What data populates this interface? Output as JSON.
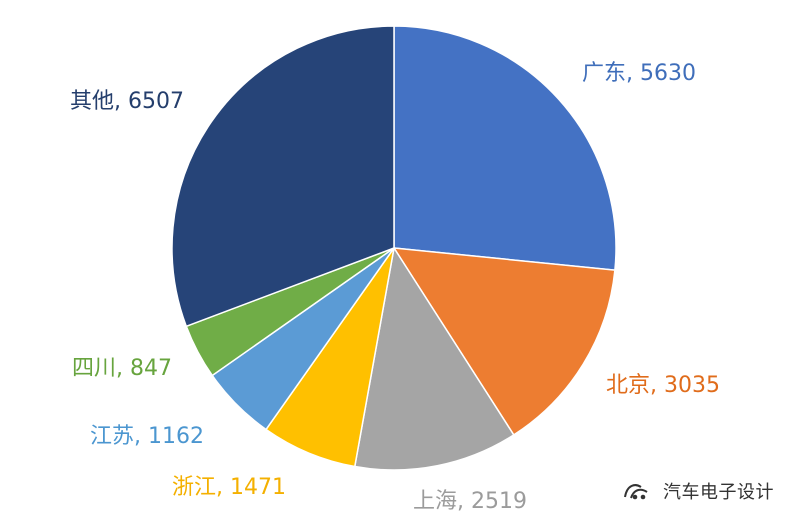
{
  "chart_data": {
    "type": "pie",
    "title": "",
    "categories": [
      "广东",
      "北京",
      "上海",
      "浙江",
      "江苏",
      "四川",
      "其他"
    ],
    "values": [
      5630,
      3035,
      2519,
      1471,
      1162,
      847,
      6507
    ],
    "labels": [
      "广东, 5630",
      "北京, 3035",
      "上海, 2519",
      "浙江, 1471",
      "江苏, 1162",
      "四川, 847",
      "其他, 6507"
    ],
    "colors": [
      "#4472C4",
      "#ED7D31",
      "#A5A5A5",
      "#FFC000",
      "#5B9BD5",
      "#70AD47",
      "#264478"
    ],
    "start_angle_degrees_clockwise_from_top": 0,
    "direction": "clockwise",
    "legend": "none"
  },
  "watermark": {
    "text": "汽车电子设计",
    "icon": "wechat-like-icon"
  }
}
